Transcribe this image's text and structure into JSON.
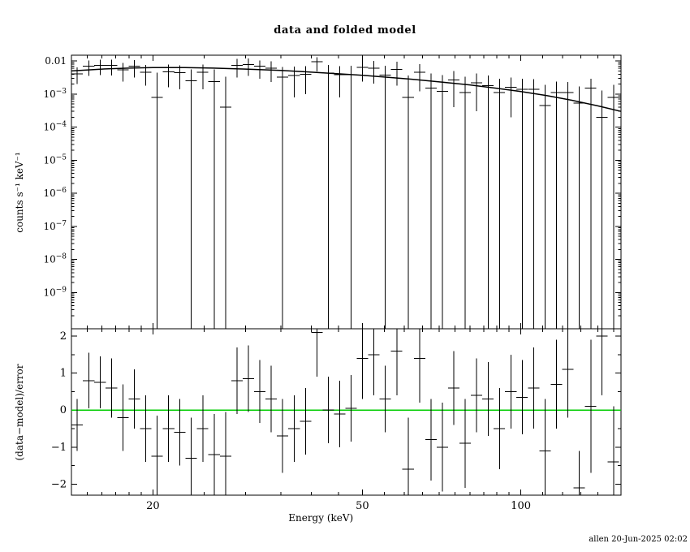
{
  "title": "data and folded model",
  "footer": "allen 20-Jun-2025 02:02",
  "colors": {
    "axis": "#000000",
    "data": "#000000",
    "model": "#000000",
    "zero_line": "#00cc00",
    "background": "#ffffff"
  },
  "chart_data": {
    "type": "scatter",
    "title": "data and folded model",
    "xlabel": "Energy (keV)",
    "xscale": "log",
    "xlim": [
      14,
      155
    ],
    "xticks_major": [
      {
        "v": 20,
        "label": "20"
      },
      {
        "v": 50,
        "label": "50"
      },
      {
        "v": 100,
        "label": "100"
      }
    ],
    "xticks_minor": [
      15,
      16,
      17,
      18,
      19,
      25,
      30,
      35,
      40,
      45,
      55,
      60,
      65,
      70,
      75,
      80,
      85,
      90,
      95,
      110,
      120,
      130,
      140,
      150
    ],
    "panels": [
      {
        "name": "spectrum",
        "ylabel": "counts s⁻¹ keV⁻¹",
        "yscale": "log",
        "ylim": [
          8e-11,
          0.015
        ],
        "yticks": [
          {
            "v": 0.01,
            "label": "0.01"
          },
          {
            "v": 0.001,
            "label": "10^−3"
          },
          {
            "v": 0.0001,
            "label": "10^−4"
          },
          {
            "v": 1e-05,
            "label": "10^−5"
          },
          {
            "v": 1e-06,
            "label": "10^−6"
          },
          {
            "v": 1e-07,
            "label": "10^−7"
          },
          {
            "v": 1e-08,
            "label": "10^−8"
          },
          {
            "v": 1e-09,
            "label": "10^−9"
          }
        ],
        "model": {
          "x": [
            14,
            16,
            18,
            20,
            23,
            26,
            30,
            35,
            40,
            45,
            50,
            56,
            63,
            71,
            80,
            90,
            100,
            112,
            125,
            140,
            155
          ],
          "y": [
            0.005,
            0.0057,
            0.0061,
            0.0063,
            0.0063,
            0.0061,
            0.0057,
            0.0052,
            0.0046,
            0.0041,
            0.0037,
            0.0032,
            0.00275,
            0.0023,
            0.0019,
            0.0015,
            0.0012,
            0.0009,
            0.00065,
            0.00044,
            0.0003
          ]
        },
        "points_format": [
          "energy_keV",
          "energy_halfwidth",
          "rate",
          "err_lo_end",
          "err_hi_end"
        ],
        "points": [
          [
            14.36,
            0.36,
            0.0041,
            0.002,
            0.0065
          ],
          [
            15.1,
            0.38,
            0.007,
            0.0035,
            0.0105
          ],
          [
            15.87,
            0.4,
            0.0075,
            0.0038,
            0.011
          ],
          [
            16.68,
            0.42,
            0.0074,
            0.0036,
            0.011
          ],
          [
            17.54,
            0.44,
            0.0054,
            0.0024,
            0.0088
          ],
          [
            18.43,
            0.46,
            0.007,
            0.0032,
            0.0108
          ],
          [
            19.38,
            0.49,
            0.0046,
            0.0018,
            0.0076
          ],
          [
            20.37,
            0.51,
            0.0008,
            0,
            0.0045
          ],
          [
            21.42,
            0.54,
            0.0047,
            0.0016,
            0.0078
          ],
          [
            22.51,
            0.56,
            0.0044,
            0.0014,
            0.0074
          ],
          [
            23.66,
            0.59,
            0.0025,
            0,
            0.0056
          ],
          [
            24.87,
            0.62,
            0.0046,
            0.0014,
            0.0078
          ],
          [
            26.15,
            0.66,
            0.0024,
            0,
            0.0055
          ],
          [
            27.49,
            0.69,
            0.0004,
            0,
            0.0034
          ],
          [
            28.89,
            0.72,
            0.0075,
            0.0032,
            0.0115
          ],
          [
            30.37,
            0.76,
            0.0078,
            0.0035,
            0.0118
          ],
          [
            31.93,
            0.8,
            0.0069,
            0.0029,
            0.0105
          ],
          [
            33.56,
            0.84,
            0.0061,
            0.0023,
            0.0098
          ],
          [
            35.28,
            0.88,
            0.0033,
            0,
            0.0066
          ],
          [
            37.09,
            0.93,
            0.0037,
            0.0008,
            0.0068
          ],
          [
            38.99,
            0.97,
            0.004,
            0.001,
            0.007
          ],
          [
            40.98,
            1.02,
            0.0095,
            0.0048,
            0.013
          ],
          [
            43.08,
            1.08,
            0.0043,
            0,
            0.0076
          ],
          [
            45.28,
            1.13,
            0.0039,
            0.0008,
            0.007
          ],
          [
            47.6,
            1.19,
            0.0039,
            0,
            0.0072
          ],
          [
            50.04,
            1.25,
            0.0065,
            0.0024,
            0.0105
          ],
          [
            52.6,
            1.31,
            0.0061,
            0.0021,
            0.01
          ],
          [
            55.29,
            1.38,
            0.0038,
            0,
            0.0072
          ],
          [
            58.12,
            1.45,
            0.0056,
            0.0018,
            0.0095
          ],
          [
            61.1,
            1.53,
            0.0008,
            0,
            0.0036
          ],
          [
            64.22,
            1.6,
            0.0046,
            0.0012,
            0.008
          ],
          [
            67.51,
            1.69,
            0.0015,
            0,
            0.0042
          ],
          [
            70.96,
            1.77,
            0.0012,
            0,
            0.0038
          ],
          [
            74.59,
            1.86,
            0.0027,
            0.0004,
            0.005
          ],
          [
            78.41,
            1.96,
            0.0011,
            0,
            0.0034
          ],
          [
            82.43,
            2.06,
            0.0022,
            0.0003,
            0.0042
          ],
          [
            86.65,
            2.16,
            0.0018,
            0,
            0.0036
          ],
          [
            91.08,
            2.27,
            0.0011,
            0,
            0.0029
          ],
          [
            95.74,
            2.39,
            0.0016,
            0.0002,
            0.0032
          ],
          [
            100.6,
            2.51,
            0.0014,
            0,
            0.0029
          ],
          [
            105.8,
            2.64,
            0.0014,
            0,
            0.0028
          ],
          [
            111.2,
            2.77,
            0.00045,
            0,
            0.0019
          ],
          [
            116.9,
            2.92,
            0.0011,
            0,
            0.0024
          ],
          [
            122.9,
            3.06,
            0.0011,
            0,
            0.0023
          ],
          [
            129.2,
            3.22,
            0.00053,
            0,
            0.0017
          ],
          [
            135.8,
            3.38,
            0.0015,
            0,
            0.0029
          ],
          [
            142.7,
            3.56,
            0.0002,
            0,
            0.0013
          ],
          [
            150.0,
            3.74,
            0.0008,
            0,
            0.0019
          ]
        ]
      },
      {
        "name": "residuals",
        "ylabel": "(data−model)/error",
        "yscale": "linear",
        "ylim": [
          -2.3,
          2.2
        ],
        "yticks": [
          {
            "v": 2,
            "label": "2"
          },
          {
            "v": 1,
            "label": "1"
          },
          {
            "v": 0,
            "label": "0"
          },
          {
            "v": -1,
            "label": "−1"
          },
          {
            "v": -2,
            "label": "−2"
          }
        ],
        "yticks_minor": [
          -1.5,
          -0.5,
          0.5,
          1.5
        ],
        "zero_line": true,
        "points_format": [
          "energy_keV",
          "energy_halfwidth",
          "residual",
          "residual_err"
        ],
        "points": [
          [
            14.36,
            0.36,
            -0.4,
            0.7
          ],
          [
            15.1,
            0.38,
            0.8,
            0.75
          ],
          [
            15.87,
            0.4,
            0.75,
            0.7
          ],
          [
            16.68,
            0.42,
            0.6,
            0.8
          ],
          [
            17.54,
            0.44,
            -0.2,
            0.9
          ],
          [
            18.43,
            0.46,
            0.3,
            0.8
          ],
          [
            19.38,
            0.49,
            -0.5,
            0.9
          ],
          [
            20.37,
            0.51,
            -1.25,
            1.1
          ],
          [
            21.42,
            0.54,
            -0.5,
            0.9
          ],
          [
            22.51,
            0.56,
            -0.6,
            0.9
          ],
          [
            23.66,
            0.59,
            -1.3,
            1.1
          ],
          [
            24.87,
            0.62,
            -0.5,
            0.9
          ],
          [
            26.15,
            0.66,
            -1.2,
            1.1
          ],
          [
            27.49,
            0.69,
            -1.25,
            1.2
          ],
          [
            28.89,
            0.72,
            0.8,
            0.9
          ],
          [
            30.37,
            0.76,
            0.85,
            0.9
          ],
          [
            31.93,
            0.8,
            0.5,
            0.85
          ],
          [
            33.56,
            0.84,
            0.3,
            0.9
          ],
          [
            35.28,
            0.88,
            -0.7,
            1.0
          ],
          [
            37.09,
            0.93,
            -0.5,
            0.9
          ],
          [
            38.99,
            0.97,
            -0.3,
            0.9
          ],
          [
            40.98,
            1.02,
            2.1,
            1.2
          ],
          [
            43.08,
            1.08,
            0.0,
            0.9
          ],
          [
            45.28,
            1.13,
            -0.1,
            0.9
          ],
          [
            47.6,
            1.19,
            0.05,
            0.9
          ],
          [
            50.04,
            1.25,
            1.4,
            1.1
          ],
          [
            52.6,
            1.31,
            1.5,
            1.1
          ],
          [
            55.29,
            1.38,
            0.3,
            0.9
          ],
          [
            58.12,
            1.45,
            1.6,
            1.2
          ],
          [
            61.1,
            1.53,
            -1.6,
            1.4
          ],
          [
            64.22,
            1.6,
            1.4,
            1.2
          ],
          [
            67.51,
            1.69,
            -0.8,
            1.1
          ],
          [
            70.96,
            1.77,
            -1.0,
            1.2
          ],
          [
            74.59,
            1.86,
            0.6,
            1.0
          ],
          [
            78.41,
            1.96,
            -0.9,
            1.2
          ],
          [
            82.43,
            2.06,
            0.4,
            1.0
          ],
          [
            86.65,
            2.16,
            0.3,
            1.0
          ],
          [
            91.08,
            2.27,
            -0.5,
            1.1
          ],
          [
            95.74,
            2.39,
            0.5,
            1.0
          ],
          [
            100.6,
            2.51,
            0.35,
            1.0
          ],
          [
            105.8,
            2.64,
            0.6,
            1.1
          ],
          [
            111.2,
            2.77,
            -1.1,
            1.4
          ],
          [
            116.9,
            2.92,
            0.7,
            1.2
          ],
          [
            122.9,
            3.06,
            1.1,
            1.3
          ],
          [
            129.2,
            3.22,
            -2.1,
            1.0
          ],
          [
            135.8,
            3.38,
            0.1,
            1.8
          ],
          [
            142.7,
            3.56,
            2.0,
            1.6
          ],
          [
            150.0,
            3.74,
            -1.4,
            1.5
          ]
        ]
      }
    ]
  }
}
